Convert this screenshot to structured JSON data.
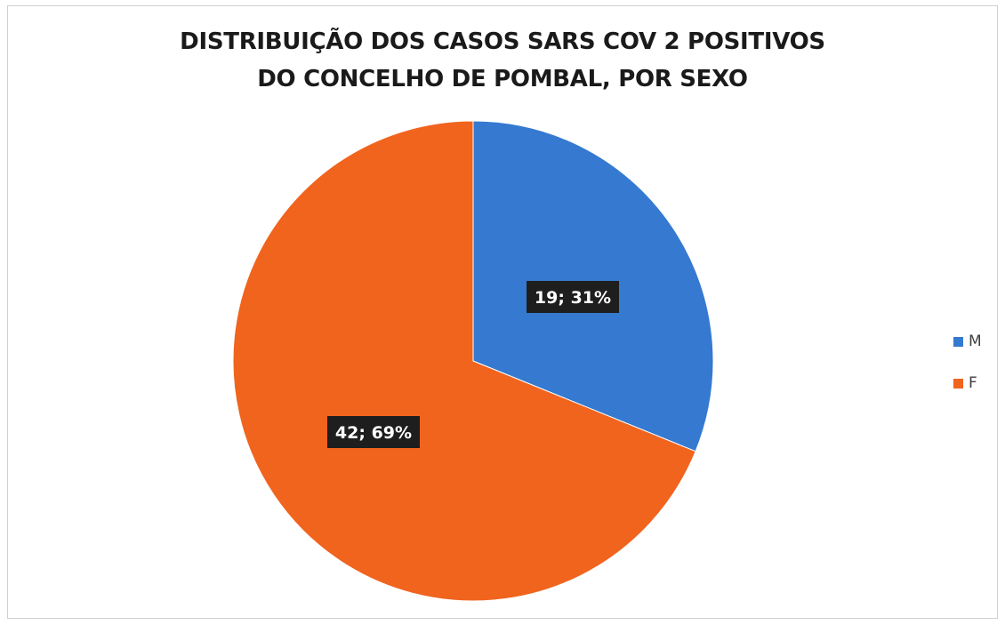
{
  "chart_data": {
    "type": "pie",
    "title": "DISTRIBUIÇÃO DOS CASOS SARS COV 2 POSITIVOS DO CONCELHO DE POMBAL, POR SEXO",
    "title_lines": [
      "DISTRIBUIÇÃO DOS CASOS SARS COV 2 POSITIVOS",
      "DO CONCELHO DE POMBAL, POR SEXO"
    ],
    "categories": [
      "M",
      "F"
    ],
    "values": [
      19,
      42
    ],
    "percentages": [
      31,
      69
    ],
    "data_labels": [
      "19; 31%",
      "42; 69%"
    ],
    "colors": [
      "#3579D1",
      "#F0641E"
    ],
    "legend_position": "right"
  }
}
